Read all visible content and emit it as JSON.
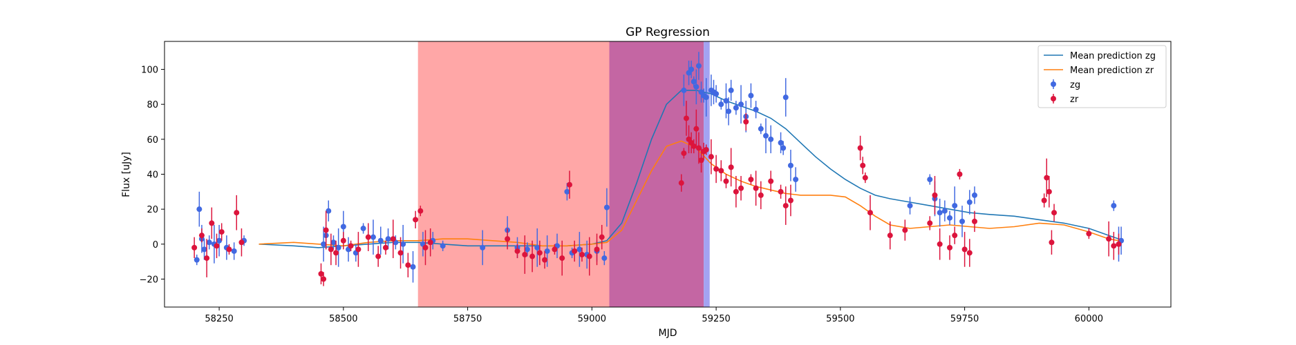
{
  "chart_data": {
    "type": "scatter",
    "title": "GP Regression",
    "xlabel": "MJD",
    "ylabel": "Flux [uJy]",
    "xlim": [
      58140,
      60165
    ],
    "ylim": [
      -36,
      116
    ],
    "xticks": [
      58250,
      58500,
      58750,
      59000,
      59250,
      59500,
      59750,
      60000
    ],
    "yticks": [
      -20,
      0,
      20,
      40,
      60,
      80,
      100
    ],
    "legend_position": "top-right",
    "shaded_regions": [
      {
        "x0": 58650,
        "x1": 59035,
        "color": "#ffa7a7"
      },
      {
        "x0": 59035,
        "x1": 59225,
        "color": "#c466a3"
      },
      {
        "x0": 59225,
        "x1": 59237,
        "color": "#a3a3f2"
      }
    ],
    "lines": [
      {
        "name": "Mean prediction zg",
        "color": "#1f77b4",
        "x": [
          58330,
          58400,
          58450,
          58500,
          58550,
          58600,
          58650,
          58700,
          58750,
          58800,
          58850,
          58900,
          58950,
          59000,
          59030,
          59060,
          59090,
          59120,
          59150,
          59180,
          59210,
          59240,
          59270,
          59300,
          59330,
          59360,
          59390,
          59420,
          59450,
          59480,
          59510,
          59540,
          59570,
          59600,
          59640,
          59680,
          59720,
          59760,
          59800,
          59850,
          59900,
          59950,
          60000,
          60040,
          60060
        ],
        "y": [
          0,
          -1,
          -2,
          -1,
          0,
          1,
          1,
          0,
          -1,
          -1,
          -1,
          -1,
          -1,
          0,
          2,
          12,
          35,
          60,
          80,
          88,
          88,
          86,
          82,
          79,
          76,
          72,
          66,
          58,
          50,
          43,
          37,
          32,
          28,
          26,
          24,
          22,
          20,
          18,
          17,
          16,
          14,
          12,
          9,
          5,
          3
        ]
      },
      {
        "name": "Mean prediction zr",
        "color": "#ff7f0e",
        "x": [
          58330,
          58400,
          58450,
          58500,
          58550,
          58600,
          58650,
          58700,
          58750,
          58800,
          58850,
          58900,
          58950,
          59000,
          59030,
          59060,
          59090,
          59120,
          59150,
          59180,
          59210,
          59240,
          59270,
          59300,
          59330,
          59360,
          59390,
          59420,
          59450,
          59480,
          59510,
          59540,
          59570,
          59600,
          59640,
          59680,
          59720,
          59760,
          59800,
          59850,
          59900,
          59950,
          60000,
          60040,
          60060
        ],
        "y": [
          0,
          1,
          0,
          -1,
          1,
          2,
          2,
          3,
          3,
          2,
          1,
          -1,
          -1,
          0,
          1,
          8,
          25,
          42,
          56,
          59,
          55,
          46,
          40,
          36,
          33,
          31,
          29,
          28,
          28,
          28,
          27,
          22,
          16,
          11,
          9,
          10,
          11,
          10,
          9,
          10,
          12,
          11,
          7,
          3,
          2
        ]
      }
    ],
    "series": [
      {
        "name": "zg",
        "color": "#4169e1",
        "errors": true,
        "x": [
          58205,
          58210,
          58215,
          58220,
          58230,
          58240,
          58250,
          58265,
          58280,
          58300,
          58460,
          58465,
          58470,
          58480,
          58490,
          58500,
          58510,
          58525,
          58540,
          58560,
          58575,
          58590,
          58605,
          58620,
          58640,
          58660,
          58680,
          58700,
          58780,
          58830,
          58850,
          58870,
          58890,
          58910,
          58930,
          58950,
          58960,
          58975,
          58990,
          59010,
          59025,
          59030,
          59185,
          59195,
          59200,
          59205,
          59210,
          59215,
          59220,
          59225,
          59230,
          59240,
          59245,
          59250,
          59260,
          59270,
          59275,
          59280,
          59290,
          59300,
          59310,
          59320,
          59330,
          59340,
          59350,
          59360,
          59380,
          59385,
          59390,
          59400,
          59410,
          59640,
          59680,
          59690,
          59700,
          59710,
          59720,
          59730,
          59745,
          59760,
          59770,
          60050,
          60060,
          60065
        ],
        "y": [
          -9,
          20,
          3,
          -3,
          1,
          0,
          2,
          -2,
          -4,
          2,
          0,
          5,
          19,
          1,
          -2,
          10,
          -3,
          -5,
          9,
          4,
          2,
          3,
          1,
          0,
          -13,
          0,
          2,
          -1,
          -2,
          8,
          -2,
          -3,
          -2,
          -4,
          -1,
          30,
          -5,
          -3,
          -6,
          -4,
          -8,
          21,
          88,
          98,
          100,
          93,
          90,
          102,
          87,
          85,
          84,
          88,
          87,
          86,
          80,
          82,
          76,
          88,
          78,
          80,
          73,
          85,
          77,
          66,
          62,
          60,
          58,
          55,
          84,
          45,
          37,
          22,
          37,
          26,
          18,
          19,
          15,
          22,
          13,
          24,
          28,
          22,
          0,
          2
        ]
      },
      {
        "name": "zr",
        "color": "#dc143c",
        "errors": true,
        "x": [
          58200,
          58215,
          58225,
          58235,
          58245,
          58255,
          58270,
          58285,
          58295,
          58455,
          58460,
          58465,
          58475,
          58485,
          58500,
          58515,
          58530,
          58550,
          58570,
          58585,
          58600,
          58615,
          58630,
          58645,
          58655,
          58665,
          58675,
          58830,
          58850,
          58865,
          58880,
          58895,
          58905,
          58925,
          58940,
          58955,
          58965,
          58980,
          58995,
          59010,
          59020,
          59180,
          59185,
          59190,
          59195,
          59200,
          59205,
          59210,
          59215,
          59220,
          59225,
          59230,
          59240,
          59250,
          59260,
          59270,
          59280,
          59290,
          59300,
          59310,
          59320,
          59330,
          59340,
          59360,
          59380,
          59390,
          59400,
          59540,
          59545,
          59550,
          59560,
          59600,
          59630,
          59680,
          59690,
          59700,
          59720,
          59730,
          59740,
          59750,
          59760,
          59770,
          59910,
          59915,
          59920,
          59925,
          59930,
          60000,
          60040,
          60050,
          60060
        ],
        "y": [
          -2,
          5,
          -8,
          12,
          -1,
          7,
          -3,
          18,
          1,
          -17,
          -20,
          8,
          -3,
          -5,
          2,
          -1,
          -3,
          4,
          -7,
          -2,
          3,
          -5,
          -12,
          14,
          19,
          -2,
          1,
          3,
          -4,
          -6,
          -7,
          -5,
          -9,
          -3,
          -8,
          34,
          -4,
          -6,
          -7,
          -3,
          4,
          35,
          52,
          72,
          60,
          58,
          56,
          66,
          55,
          48,
          53,
          54,
          50,
          43,
          42,
          36,
          44,
          30,
          32,
          70,
          37,
          32,
          28,
          36,
          30,
          22,
          25,
          55,
          45,
          38,
          18,
          5,
          8,
          12,
          28,
          0,
          -2,
          5,
          40,
          -3,
          -5,
          13,
          25,
          38,
          30,
          1,
          18,
          6,
          3,
          -1,
          0
        ]
      }
    ]
  }
}
